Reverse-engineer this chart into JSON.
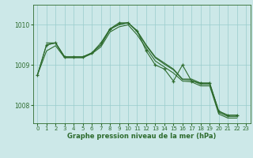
{
  "background_color": "#cce8e8",
  "grid_color": "#99cccc",
  "line_color": "#2d6b2d",
  "xlabel": "Graphe pression niveau de la mer (hPa)",
  "xlabel_fontsize": 6.0,
  "yticks": [
    1008,
    1009,
    1010
  ],
  "xticks": [
    0,
    1,
    2,
    3,
    4,
    5,
    6,
    7,
    8,
    9,
    10,
    11,
    12,
    13,
    14,
    15,
    16,
    17,
    18,
    19,
    20,
    21,
    22,
    23
  ],
  "xlim": [
    -0.5,
    23.5
  ],
  "ylim": [
    1007.55,
    1010.5
  ],
  "lines": [
    {
      "x": [
        0,
        1,
        2,
        3,
        4,
        5,
        6,
        7,
        8,
        9,
        10,
        11,
        12,
        13,
        14,
        15,
        16,
        17,
        18,
        19,
        20,
        21,
        22
      ],
      "y": [
        1008.75,
        1009.5,
        1009.55,
        1009.2,
        1009.2,
        1009.2,
        1009.3,
        1009.55,
        1009.9,
        1010.05,
        1010.05,
        1009.85,
        1009.35,
        1009.0,
        1008.9,
        1008.6,
        1009.0,
        1008.6,
        1008.55,
        1008.55,
        1007.85,
        1007.75,
        1007.75
      ],
      "marker": true
    },
    {
      "x": [
        0,
        1,
        2,
        3,
        4,
        5,
        6,
        7,
        8,
        9,
        10,
        11,
        12,
        13,
        14,
        15,
        16,
        17,
        18,
        19,
        20,
        21,
        22
      ],
      "y": [
        1008.75,
        1009.5,
        1009.55,
        1009.2,
        1009.2,
        1009.2,
        1009.3,
        1009.5,
        1009.88,
        1010.02,
        1010.05,
        1009.83,
        1009.48,
        1009.18,
        1009.02,
        1008.88,
        1008.64,
        1008.62,
        1008.52,
        1008.52,
        1007.82,
        1007.72,
        1007.72
      ],
      "marker": false
    },
    {
      "x": [
        1,
        2,
        3,
        4,
        5,
        6,
        7,
        8,
        9,
        10,
        11,
        12,
        13,
        14,
        15,
        16,
        17,
        18,
        19,
        20,
        21,
        22
      ],
      "y": [
        1009.55,
        1009.55,
        1009.2,
        1009.2,
        1009.2,
        1009.3,
        1009.5,
        1009.9,
        1010.0,
        1010.05,
        1009.85,
        1009.5,
        1009.2,
        1009.05,
        1008.9,
        1008.65,
        1008.65,
        1008.55,
        1008.55,
        1007.85,
        1007.75,
        1007.75
      ],
      "marker": false
    },
    {
      "x": [
        0,
        1,
        2,
        3,
        4,
        5,
        6,
        7,
        8,
        9,
        10,
        11,
        12,
        13,
        14,
        15,
        16,
        17,
        18,
        19,
        20,
        21,
        22
      ],
      "y": [
        1008.75,
        1009.35,
        1009.48,
        1009.18,
        1009.18,
        1009.18,
        1009.28,
        1009.45,
        1009.82,
        1009.95,
        1010.0,
        1009.75,
        1009.42,
        1009.1,
        1008.95,
        1008.8,
        1008.6,
        1008.58,
        1008.48,
        1008.48,
        1007.78,
        1007.68,
        1007.68
      ],
      "marker": false
    }
  ]
}
